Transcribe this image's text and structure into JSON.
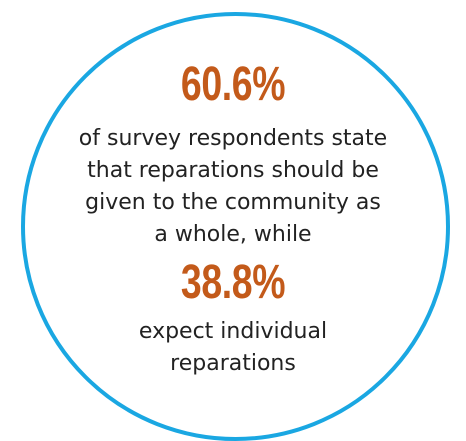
{
  "stats": {
    "community_percent": "60.6%",
    "community_text": [
      "of survey respondents state",
      "that reparations should be",
      "given to the community as",
      "a whole, while"
    ],
    "individual_percent": "38.8%",
    "individual_text": [
      "expect individual",
      "reparations"
    ]
  },
  "colors": {
    "circle_border": "#1aa7e2",
    "percent_text": "#c35a1a",
    "body_text": "#222222"
  }
}
